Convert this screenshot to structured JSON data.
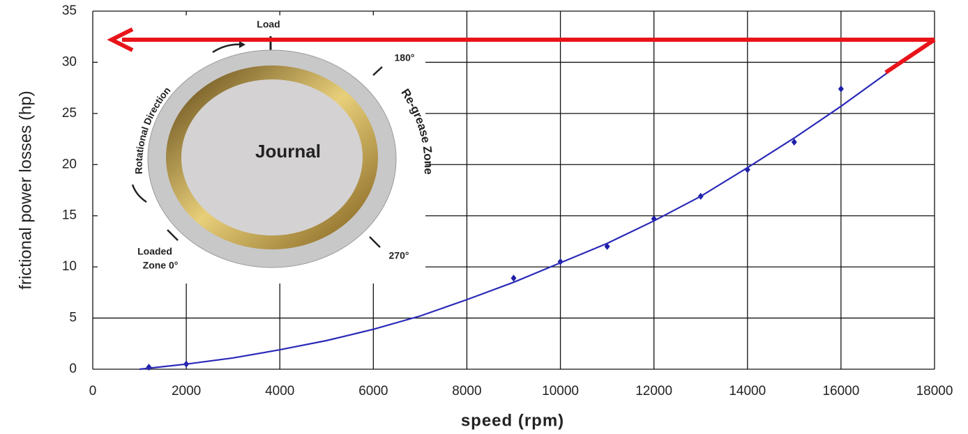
{
  "chart_data": {
    "type": "scatter",
    "x_label": "speed (rpm)",
    "y_label": "frictional power losses (hp)",
    "xlim": [
      0,
      18000
    ],
    "xticks": [
      0,
      2000,
      4000,
      6000,
      8000,
      10000,
      12000,
      14000,
      16000,
      18000
    ],
    "ylim": [
      0,
      35
    ],
    "yticks": [
      0,
      5,
      10,
      15,
      20,
      25,
      30,
      35
    ],
    "grid": true,
    "series": [
      {
        "type": "scatter",
        "color": "#1f1fa8",
        "x": [
          1200,
          2000,
          9000,
          10000,
          11000,
          12000,
          13000,
          14000,
          15000,
          16000
        ],
        "values": [
          0.2,
          0.5,
          8.9,
          10.5,
          12,
          14.7,
          16.9,
          19.5,
          22.2,
          27.4
        ]
      },
      {
        "type": "line",
        "color": "#2a2ab8",
        "x": [
          1000,
          2000,
          3000,
          4000,
          5000,
          6000,
          7000,
          8000,
          9000,
          10000,
          11000,
          12000,
          13000,
          14000,
          15000,
          16000,
          17000
        ],
        "values": [
          0,
          0.5,
          1.1,
          1.9,
          2.8,
          3.9,
          5.2,
          6.8,
          8.5,
          10.4,
          12.3,
          14.5,
          16.9,
          19.7,
          22.6,
          25.7,
          29
        ]
      }
    ],
    "inset": {
      "load": "Load",
      "angle_180": "180°",
      "rotation": "Rotational Direction",
      "regrease": "Re-grease Zone",
      "journal": "Journal",
      "loaded_zone_line1": "Loaded",
      "loaded_zone_line2": "Zone 0°",
      "angle_270": "270°"
    }
  }
}
